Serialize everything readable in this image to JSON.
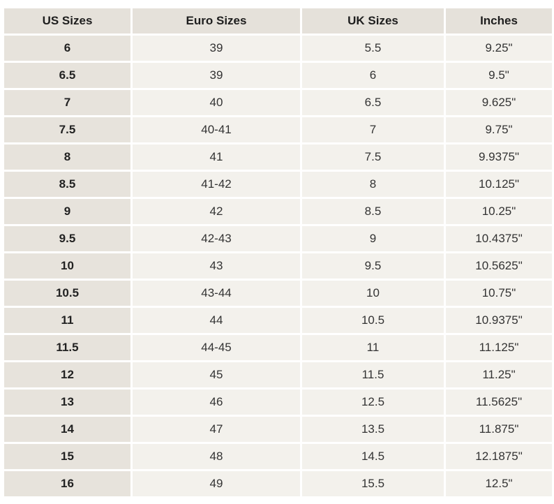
{
  "headers": [
    "US Sizes",
    "Euro Sizes",
    "UK Sizes",
    "Inches"
  ],
  "rows": [
    [
      "6",
      "39",
      "5.5",
      "9.25\""
    ],
    [
      "6.5",
      "39",
      "6",
      "9.5\""
    ],
    [
      "7",
      "40",
      "6.5",
      "9.625\""
    ],
    [
      "7.5",
      "40-41",
      "7",
      "9.75\""
    ],
    [
      "8",
      "41",
      "7.5",
      "9.9375\""
    ],
    [
      "8.5",
      "41-42",
      "8",
      "10.125\""
    ],
    [
      "9",
      "42",
      "8.5",
      "10.25\""
    ],
    [
      "9.5",
      "42-43",
      "9",
      "10.4375\""
    ],
    [
      "10",
      "43",
      "9.5",
      "10.5625\""
    ],
    [
      "10.5",
      "43-44",
      "10",
      "10.75\""
    ],
    [
      "11",
      "44",
      "10.5",
      "10.9375\""
    ],
    [
      "11.5",
      "44-45",
      "11",
      "11.125\""
    ],
    [
      "12",
      "45",
      "11.5",
      "11.25\""
    ],
    [
      "13",
      "46",
      "12.5",
      "11.5625\""
    ],
    [
      "14",
      "47",
      "13.5",
      "11.875\""
    ],
    [
      "15",
      "48",
      "14.5",
      "12.1875\""
    ],
    [
      "16",
      "49",
      "15.5",
      "12.5\""
    ]
  ]
}
